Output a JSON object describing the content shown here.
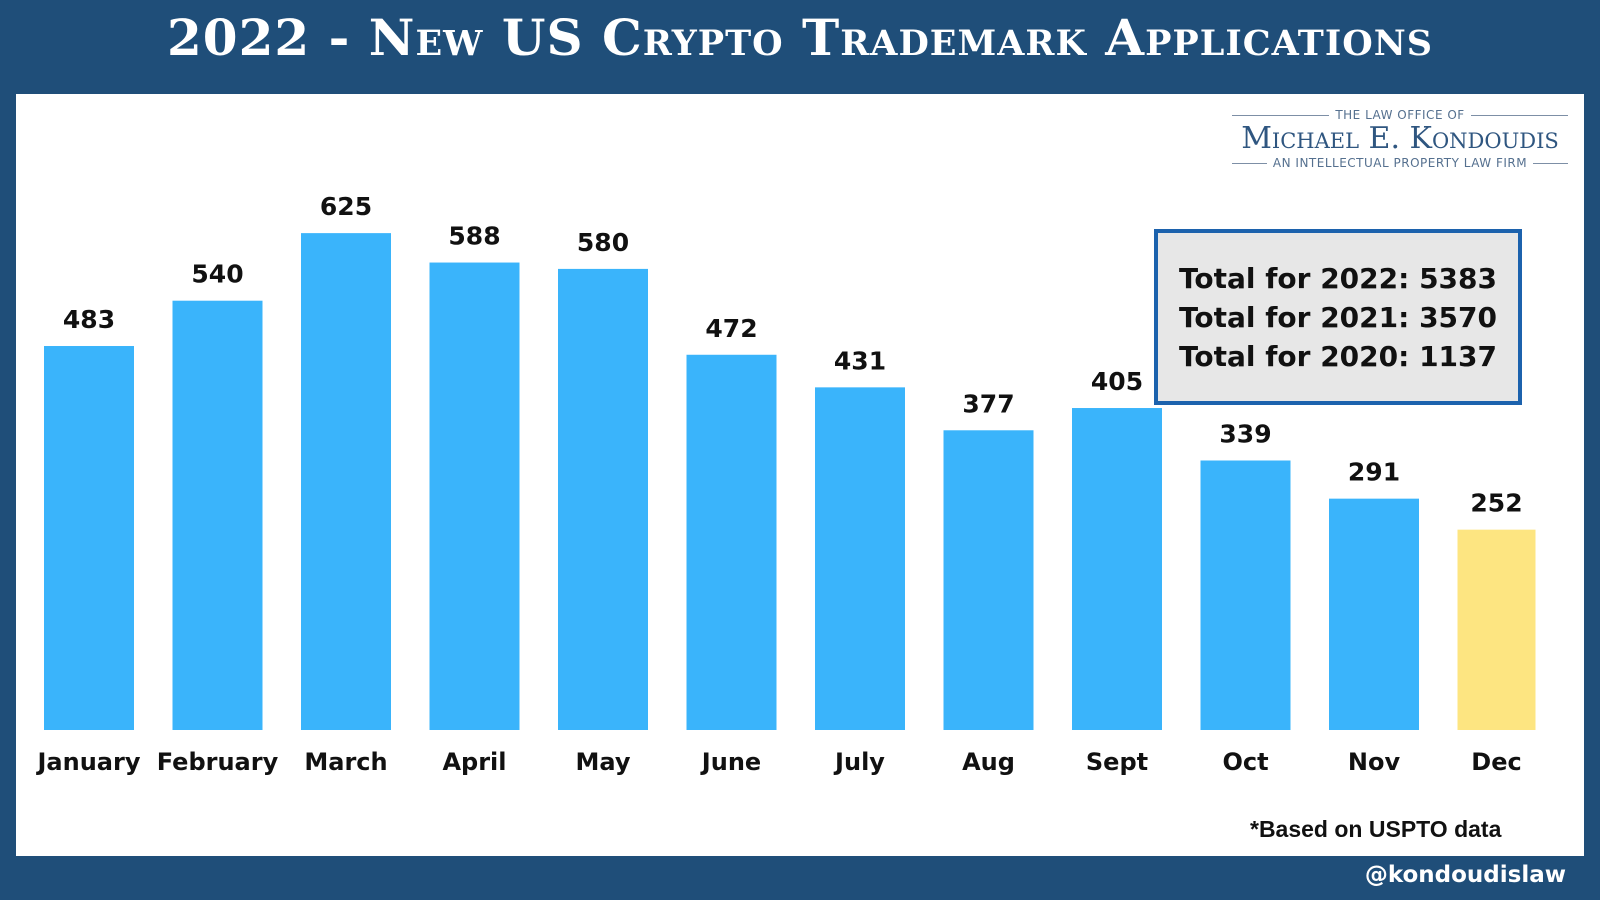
{
  "title": "2022 - New US Crypto Trademark Applications",
  "logo": {
    "pre": "THE LAW OFFICE OF",
    "name": "Michael E. Kondoudis",
    "post": "AN INTELLECTUAL PROPERTY LAW FIRM"
  },
  "totals": [
    "Total for 2022: 5383",
    "Total for 2021: 3570",
    "Total for 2020: 1137"
  ],
  "footnote": "*Based on USPTO data",
  "handle": "@kondoudislaw",
  "colors": {
    "bar": "#3ab4fb",
    "highlight_bar": "#fde581",
    "frame": "#1f4e79"
  },
  "chart_data": {
    "type": "bar",
    "title": "2022 - New US Crypto Trademark Applications",
    "categories": [
      "January",
      "February",
      "March",
      "April",
      "May",
      "June",
      "July",
      "Aug",
      "Sept",
      "Oct",
      "Nov",
      "Dec"
    ],
    "values": [
      483,
      540,
      625,
      588,
      580,
      472,
      431,
      377,
      405,
      339,
      291,
      252
    ],
    "highlight_category": "Dec",
    "data_labels": true,
    "grid": false,
    "legend": "none"
  }
}
